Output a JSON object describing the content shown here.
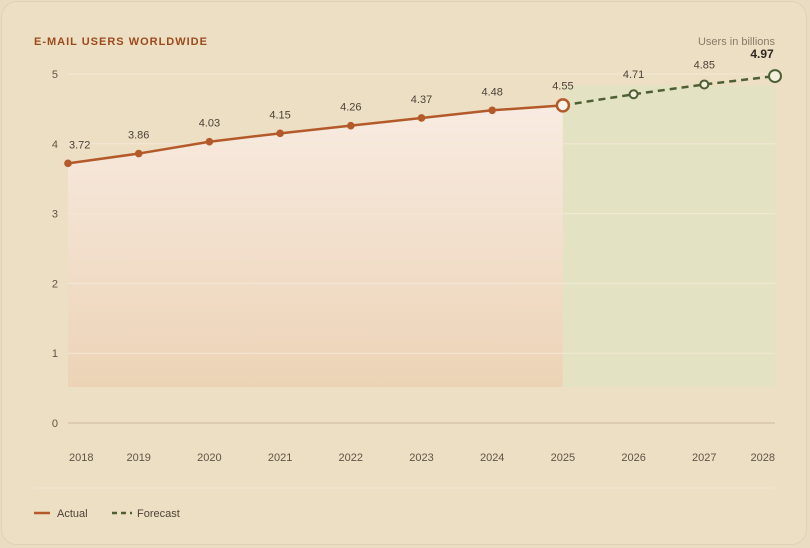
{
  "chart_data": {
    "type": "line",
    "title": "E-MAIL USERS WORLDWIDE",
    "unit_label": "Users in billions",
    "x": [
      "2018",
      "2019",
      "2020",
      "2021",
      "2022",
      "2023",
      "2024",
      "2025",
      "2026",
      "2027",
      "2028"
    ],
    "y_ticks": [
      "0",
      "1",
      "2",
      "3",
      "4",
      "5"
    ],
    "ylim": [
      0,
      5
    ],
    "grid": true,
    "legend_placement": "bottom-left",
    "series": [
      {
        "name": "Actual",
        "x": [
          "2018",
          "2019",
          "2020",
          "2021",
          "2022",
          "2023",
          "2024",
          "2025"
        ],
        "values": [
          3.72,
          3.86,
          4.03,
          4.15,
          4.26,
          4.37,
          4.48,
          4.55
        ],
        "labels": [
          "3.72",
          "3.86",
          "4.03",
          "4.15",
          "4.26",
          "4.37",
          "4.48",
          "4.55"
        ],
        "color": "#b45a2a",
        "style": "solid"
      },
      {
        "name": "Forecast",
        "x": [
          "2025",
          "2026",
          "2027",
          "2028"
        ],
        "values": [
          4.55,
          4.71,
          4.85,
          4.97
        ],
        "labels": [
          "",
          "4.71",
          "4.85",
          "4.97"
        ],
        "color": "#4f5f34",
        "style": "dashed"
      }
    ],
    "forecast_region": {
      "from": "2025",
      "to": "2028",
      "color": "#e3e3c4"
    }
  }
}
